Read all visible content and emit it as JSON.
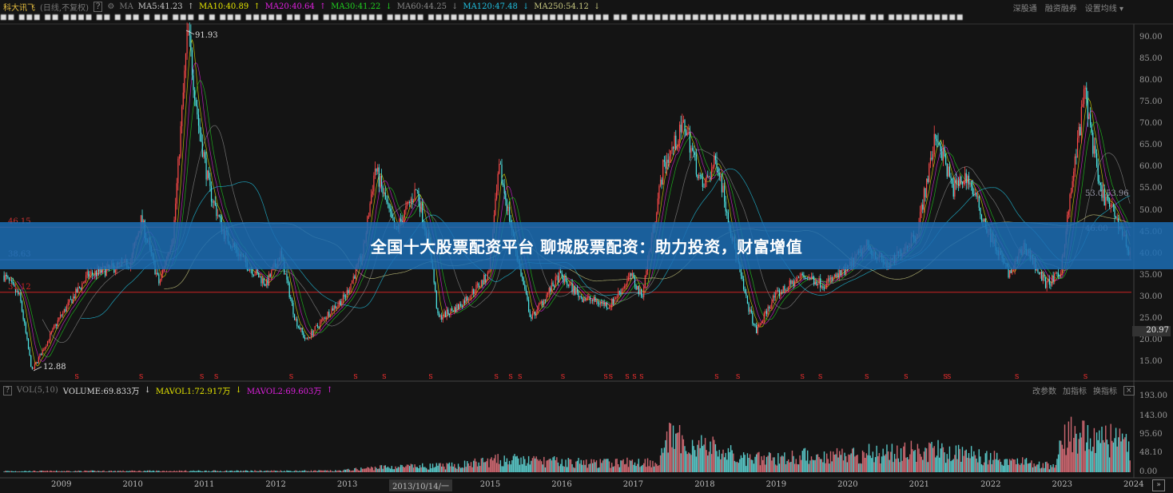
{
  "header": {
    "stock_name": "科大讯飞",
    "mode": "(日线,不复权)",
    "help": "?",
    "ma_label": "MA",
    "ma": [
      {
        "label": "MA5:41.23",
        "arrow": "↑",
        "color": "#cccccc",
        "period": 5
      },
      {
        "label": "MA10:40.89",
        "arrow": "↑",
        "color": "#e6e600",
        "period": 10
      },
      {
        "label": "MA20:40.64",
        "arrow": "↑",
        "color": "#e020e0",
        "period": 20
      },
      {
        "label": "MA30:41.22",
        "arrow": "↓",
        "color": "#20d020",
        "period": 30
      },
      {
        "label": "MA60:44.25",
        "arrow": "↓",
        "color": "#888888",
        "period": 60
      },
      {
        "label": "MA120:47.48",
        "arrow": "↓",
        "color": "#20c0e0",
        "period": 120
      },
      {
        "label": "MA250:54.12",
        "arrow": "↓",
        "color": "#c8c880",
        "period": 250
      }
    ],
    "blurred_info": "■■ ■■■ ■■ ■■■■   ■■ ■ ■■   ■ ■■ ■■■ ■ ■   ■■■ ■■■■■ ■■ ■■ ■■■■■■■■ ■■■■■ ■■■■■■■■■■■■■■■■■■■■■■■■ ■■ ■■■■■■■■■■■■■■■■■■■■■■■■■■■■■■■ ■■ ■■■■■■■■■■",
    "right_links": [
      "深股通",
      "融资融券",
      "设置均线 ▾"
    ]
  },
  "banner": {
    "text": "全国十大股票配资平台 聊城股票配资：助力投资，财富增值"
  },
  "price_axis": {
    "ticks": [
      "90.00",
      "85.00",
      "80.00",
      "75.00",
      "70.00",
      "65.00",
      "60.00",
      "55.00",
      "50.00",
      "45.00",
      "40.00",
      "35.00",
      "30.00",
      "25.00",
      "20.00",
      "15.00"
    ],
    "last_price": "20.97"
  },
  "left_levels": [
    {
      "label": "46.15",
      "value": 46.15,
      "color": "#cc3333"
    },
    {
      "label": "38.63",
      "value": 38.63,
      "color": "#7a7ab0"
    },
    {
      "label": "31.12",
      "value": 31.12,
      "color": "#cc2222"
    }
  ],
  "annotations": {
    "high": "91.93",
    "low": "12.88",
    "mid1": "53.0",
    "mid2": "53.96",
    "mid3": "46.00"
  },
  "volume": {
    "help": "?",
    "indicator": "VOL(5,10)",
    "volume": "VOLUME:69.833万",
    "volume_arrow": "↓",
    "mavol1": "MAVOL1:72.917万",
    "mavol1_arrow": "↓",
    "mavol2": "MAVOL2:69.603万",
    "mavol2_arrow": "↑",
    "buttons": [
      "改参数",
      "加指标",
      "换指标"
    ],
    "close": "×",
    "ticks": [
      "193.00",
      "143.00",
      "95.60",
      "48.10",
      "0.00"
    ]
  },
  "x_axis": {
    "years": [
      "2009",
      "2010",
      "2011",
      "2012",
      "2013",
      "2015",
      "2016",
      "2017",
      "2018",
      "2019",
      "2020",
      "2021",
      "2022",
      "2023",
      "2024"
    ],
    "cursor_label": "2013/10/14/一",
    "next": "»"
  },
  "colors": {
    "up": "#ff4a4a",
    "down": "#4ee8e8",
    "background": "#141414",
    "banner": "#1c6cb2"
  },
  "chart_data": {
    "type": "candlestick",
    "x_range": [
      "2008.2",
      "2024.0"
    ],
    "ylim": [
      12,
      93
    ],
    "price_keypoints": [
      [
        2008.23,
        35
      ],
      [
        2008.45,
        30
      ],
      [
        2008.62,
        12.88
      ],
      [
        2009.0,
        25
      ],
      [
        2009.4,
        35
      ],
      [
        2010.0,
        38
      ],
      [
        2010.15,
        48
      ],
      [
        2010.4,
        33
      ],
      [
        2010.6,
        45
      ],
      [
        2010.8,
        91.93
      ],
      [
        2010.95,
        70
      ],
      [
        2011.1,
        55
      ],
      [
        2011.3,
        45
      ],
      [
        2011.6,
        38
      ],
      [
        2011.9,
        33
      ],
      [
        2012.1,
        40
      ],
      [
        2012.3,
        25
      ],
      [
        2012.45,
        20
      ],
      [
        2012.8,
        27
      ],
      [
        2013.0,
        30
      ],
      [
        2013.25,
        40
      ],
      [
        2013.42,
        60
      ],
      [
        2013.7,
        45
      ],
      [
        2014.0,
        55
      ],
      [
        2014.2,
        40
      ],
      [
        2014.3,
        25
      ],
      [
        2014.6,
        28
      ],
      [
        2015.0,
        35
      ],
      [
        2015.16,
        60
      ],
      [
        2015.4,
        40
      ],
      [
        2015.6,
        25
      ],
      [
        2016.0,
        35
      ],
      [
        2016.3,
        30
      ],
      [
        2016.7,
        28
      ],
      [
        2017.0,
        35
      ],
      [
        2017.15,
        30
      ],
      [
        2017.45,
        60
      ],
      [
        2017.75,
        70
      ],
      [
        2018.0,
        55
      ],
      [
        2018.2,
        62
      ],
      [
        2018.4,
        45
      ],
      [
        2018.6,
        30
      ],
      [
        2018.75,
        22
      ],
      [
        2019.0,
        30
      ],
      [
        2019.4,
        35
      ],
      [
        2019.7,
        33
      ],
      [
        2020.0,
        36
      ],
      [
        2020.3,
        42
      ],
      [
        2020.6,
        37
      ],
      [
        2021.0,
        45
      ],
      [
        2021.27,
        68
      ],
      [
        2021.5,
        55
      ],
      [
        2021.7,
        58
      ],
      [
        2022.0,
        45
      ],
      [
        2022.3,
        35
      ],
      [
        2022.5,
        42
      ],
      [
        2022.8,
        33
      ],
      [
        2023.0,
        35
      ],
      [
        2023.2,
        60
      ],
      [
        2023.35,
        78
      ],
      [
        2023.55,
        55
      ],
      [
        2023.8,
        48
      ],
      [
        2023.98,
        40
      ]
    ],
    "volume_level_keypoints": [
      [
        2008.2,
        3
      ],
      [
        2012.9,
        4
      ],
      [
        2013.5,
        14
      ],
      [
        2014.5,
        18
      ],
      [
        2015.2,
        35
      ],
      [
        2016.5,
        25
      ],
      [
        2017.4,
        30
      ],
      [
        2017.5,
        95
      ],
      [
        2018.1,
        70
      ],
      [
        2018.6,
        35
      ],
      [
        2019.5,
        45
      ],
      [
        2020.5,
        55
      ],
      [
        2021.3,
        60
      ],
      [
        2022.5,
        30
      ],
      [
        2022.95,
        15
      ],
      [
        2023.05,
        110
      ],
      [
        2023.6,
        95
      ],
      [
        2024.0,
        70
      ]
    ],
    "volume_ylim": [
      0,
      200
    ],
    "signal_markers": [
      2009.25,
      2010.15,
      2011.0,
      2011.2,
      2012.25,
      2013.15,
      2013.55,
      2014.2,
      2015.12,
      2015.32,
      2015.45,
      2016.05,
      2016.65,
      2016.72,
      2016.95,
      2017.05,
      2017.15,
      2018.2,
      2018.5,
      2019.4,
      2019.65,
      2020.3,
      2020.85,
      2021.4,
      2021.45,
      2022.4,
      2023.36
    ]
  }
}
